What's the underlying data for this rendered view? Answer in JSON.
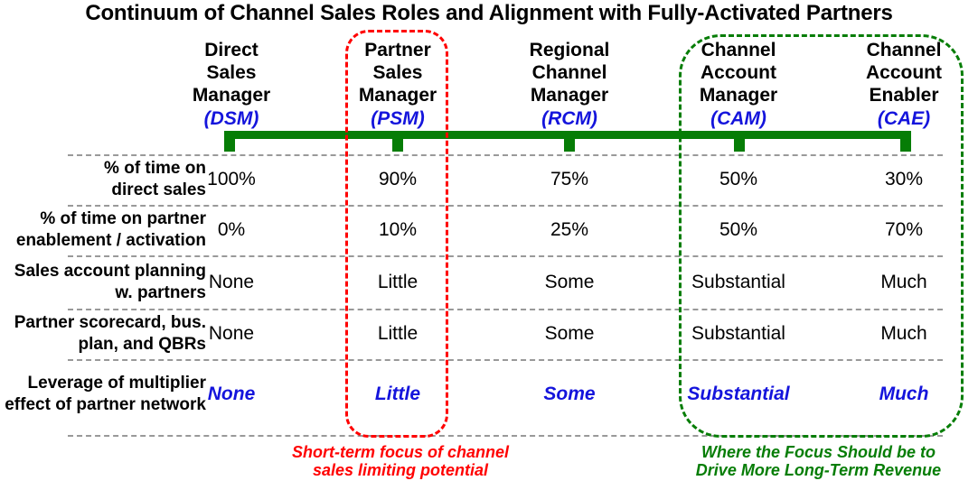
{
  "title": "Continuum of Channel Sales Roles and Alignment with Fully-Activated Partners",
  "colors": {
    "bar_green": "#067D06",
    "abbr_blue": "#1414DC",
    "highlight_red": "#FF0000",
    "separator_gray": "#999999"
  },
  "columns": [
    {
      "lines": [
        "Direct",
        "Sales",
        "Manager"
      ],
      "abbr": "(DSM)"
    },
    {
      "lines": [
        "Partner",
        "Sales",
        "Manager"
      ],
      "abbr": "(PSM)"
    },
    {
      "lines": [
        "Regional",
        "Channel",
        "Manager"
      ],
      "abbr": "(RCM)"
    },
    {
      "lines": [
        "Channel",
        "Account",
        "Manager"
      ],
      "abbr": "(CAM)"
    },
    {
      "lines": [
        "Channel",
        "Account",
        "Enabler"
      ],
      "abbr": "(CAE)"
    }
  ],
  "rows": [
    {
      "label": [
        "% of time on",
        "direct sales"
      ],
      "values": [
        "100%",
        "90%",
        "75%",
        "50%",
        "30%"
      ]
    },
    {
      "label": [
        "% of time on partner",
        "enablement / activation"
      ],
      "values": [
        "0%",
        "10%",
        "25%",
        "50%",
        "70%"
      ]
    },
    {
      "label": [
        "Sales account planning",
        "w. partners"
      ],
      "values": [
        "None",
        "Little",
        "Some",
        "Substantial",
        "Much"
      ]
    },
    {
      "label": [
        "Partner scorecard, bus.",
        "plan, and QBRs"
      ],
      "values": [
        "None",
        "Little",
        "Some",
        "Substantial",
        "Much"
      ]
    },
    {
      "label": [
        "Leverage of multiplier",
        "effect of partner network"
      ],
      "values": [
        "None",
        "Little",
        "Some",
        "Substantial",
        "Much"
      ]
    }
  ],
  "annotations": {
    "red": {
      "lines": [
        "Short-term focus of channel",
        "sales limiting potential"
      ]
    },
    "green": {
      "lines": [
        "Where the Focus Should be to",
        "Drive More Long-Term Revenue"
      ]
    }
  },
  "chart_data": {
    "type": "table",
    "title": "Continuum of Channel Sales Roles and Alignment with Fully-Activated Partners",
    "columns": [
      "Direct Sales Manager (DSM)",
      "Partner Sales Manager (PSM)",
      "Regional Channel Manager (RCM)",
      "Channel Account Manager (CAM)",
      "Channel Account Enabler (CAE)"
    ],
    "row_headers": [
      "% of time on direct sales",
      "% of time on partner enablement / activation",
      "Sales account planning w. partners",
      "Partner scorecard, bus. plan, and QBRs",
      "Leverage of multiplier effect of partner network"
    ],
    "cells": [
      [
        "100%",
        "90%",
        "75%",
        "50%",
        "30%"
      ],
      [
        "0%",
        "10%",
        "25%",
        "50%",
        "70%"
      ],
      [
        "None",
        "Little",
        "Some",
        "Substantial",
        "Much"
      ],
      [
        "None",
        "Little",
        "Some",
        "Substantial",
        "Much"
      ],
      [
        "None",
        "Little",
        "Some",
        "Substantial",
        "Much"
      ]
    ],
    "highlights": [
      {
        "columns": [
          "PSM"
        ],
        "color": "#FF0000",
        "caption": "Short-term focus of channel sales limiting potential"
      },
      {
        "columns": [
          "CAM",
          "CAE"
        ],
        "color": "#067D06",
        "caption": "Where the Focus Should be to Drive More Long-Term Revenue"
      }
    ]
  }
}
